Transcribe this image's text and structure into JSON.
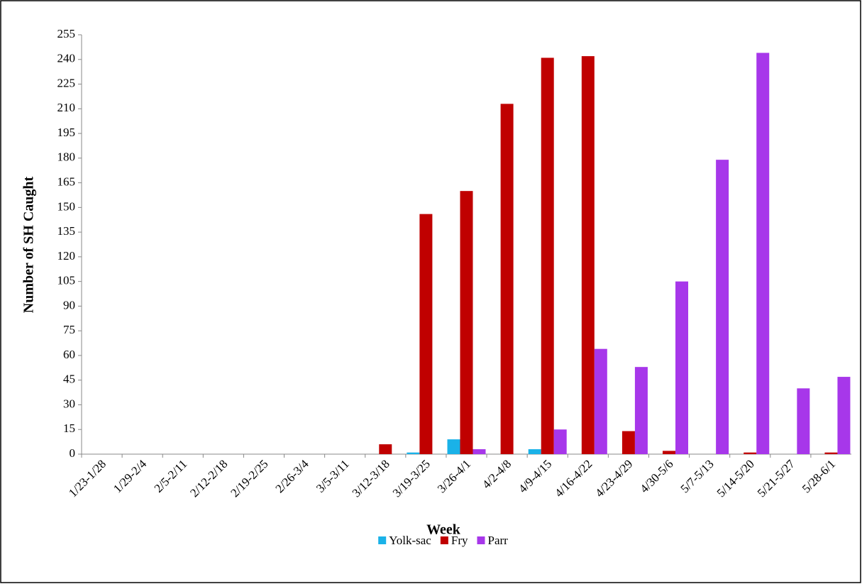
{
  "chart_data": {
    "type": "bar",
    "x_label": "Week",
    "y_label": "Number of SH Caught",
    "categories": [
      "1/23-1/28",
      "1/29-2/4",
      "2/5-2/11",
      "2/12-2/18",
      "2/19-2/25",
      "2/26-3/4",
      "3/5-3/11",
      "3/12-3/18",
      "3/19-3/25",
      "3/26-4/1",
      "4/2-4/8",
      "4/9-4/15",
      "4/16-4/22",
      "4/23-4/29",
      "4/30-5/6",
      "5/7-5/13",
      "5/14-5/20",
      "5/21-5/27",
      "5/28-6/1"
    ],
    "series": [
      {
        "name": "Yolk-sac",
        "color": "#1ab2e8",
        "values": [
          0,
          0,
          0,
          0,
          0,
          0,
          0,
          0,
          1,
          9,
          0,
          3,
          0,
          0,
          0,
          0,
          0,
          0,
          0
        ]
      },
      {
        "name": "Fry",
        "color": "#c00000",
        "values": [
          0,
          0,
          0,
          0,
          0,
          0,
          0,
          6,
          146,
          160,
          213,
          241,
          242,
          14,
          2,
          0,
          1,
          0,
          1
        ]
      },
      {
        "name": "Parr",
        "color": "#a737ea",
        "values": [
          0,
          0,
          0,
          0,
          0,
          0,
          0,
          0,
          0,
          3,
          0,
          15,
          64,
          53,
          105,
          179,
          244,
          40,
          47
        ]
      }
    ],
    "ylim": [
      0,
      255
    ],
    "yticks": [
      0,
      15,
      30,
      45,
      60,
      75,
      90,
      105,
      120,
      135,
      150,
      165,
      180,
      195,
      210,
      225,
      240,
      255
    ],
    "grid": false,
    "legend": "bottom"
  }
}
